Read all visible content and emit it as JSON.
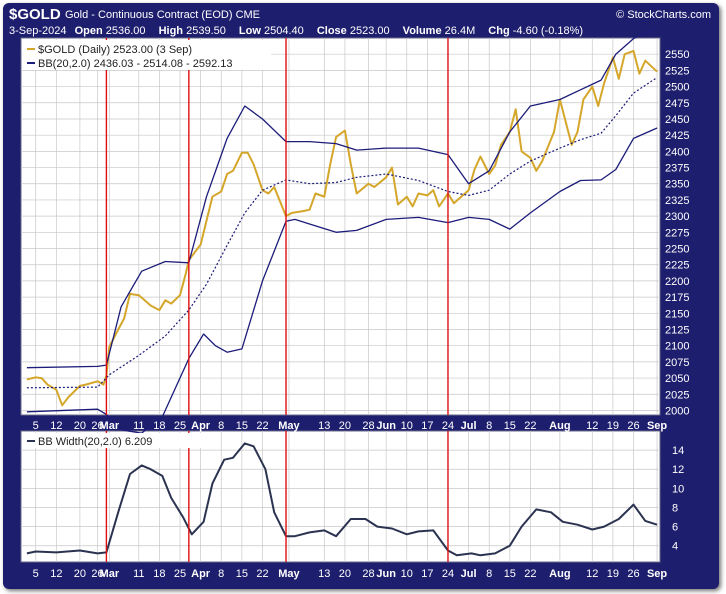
{
  "header": {
    "symbol": "$GOLD",
    "subtitle": "Gold - Continuous Contract (EOD) CME",
    "watermark": "© StockCharts.com",
    "date": "3-Sep-2024",
    "open_label": "Open",
    "open": "2536.00",
    "high_label": "High",
    "high": "2539.50",
    "low_label": "Low",
    "low": "2504.40",
    "close_label": "Close",
    "close": "2523.00",
    "volume_label": "Volume",
    "volume": "26.4M",
    "chg_label": "Chg",
    "chg": "-4.60 (-0.18%)"
  },
  "colors": {
    "price": "#d4a62a",
    "bands": "#1c1c7a",
    "lower_line": "#2b3350",
    "frame": "#1e1e6e",
    "marker": "#e01010",
    "grid": "#c8c8c8"
  },
  "chart_data": [
    {
      "type": "line",
      "legend": [
        "$GOLD (Daily) 2523.00 (3 Sep)",
        "BB(20,2.0) 2436.03 - 2514.08 - 2592.13"
      ],
      "y_ticks": [
        2000,
        2025,
        2050,
        2075,
        2100,
        2125,
        2150,
        2175,
        2200,
        2225,
        2250,
        2275,
        2300,
        2325,
        2350,
        2375,
        2400,
        2425,
        2450,
        2475,
        2500,
        2525,
        2550
      ],
      "ylim": [
        1993,
        2575
      ],
      "x_tick_labels": [
        "5",
        "12",
        "20",
        "26",
        "Mar",
        "11",
        "18",
        "25",
        "Apr",
        "8",
        "15",
        "22",
        "May",
        "13",
        "20",
        "28",
        "Jun",
        "10",
        "17",
        "24",
        "Jul",
        "8",
        "15",
        "22",
        "Aug",
        "12",
        "19",
        "26",
        "Sep"
      ],
      "x_tick_dates": [
        "2024-02-05",
        "2024-02-12",
        "2024-02-20",
        "2024-02-26",
        "2024-03-01",
        "2024-03-11",
        "2024-03-18",
        "2024-03-25",
        "2024-04-01",
        "2024-04-08",
        "2024-04-15",
        "2024-04-22",
        "2024-05-01",
        "2024-05-13",
        "2024-05-20",
        "2024-05-28",
        "2024-06-03",
        "2024-06-10",
        "2024-06-17",
        "2024-06-24",
        "2024-07-01",
        "2024-07-08",
        "2024-07-15",
        "2024-07-22",
        "2024-08-01",
        "2024-08-12",
        "2024-08-19",
        "2024-08-26",
        "2024-09-03"
      ],
      "event_lines": [
        "2024-02-29",
        "2024-03-28",
        "2024-04-30",
        "2024-06-24"
      ],
      "series": [
        {
          "name": "$GOLD (Daily)",
          "style": "solid",
          "x": [
            "2024-02-02",
            "2024-02-05",
            "2024-02-07",
            "2024-02-09",
            "2024-02-12",
            "2024-02-14",
            "2024-02-16",
            "2024-02-20",
            "2024-02-22",
            "2024-02-26",
            "2024-02-28",
            "2024-02-29",
            "2024-03-01",
            "2024-03-04",
            "2024-03-06",
            "2024-03-08",
            "2024-03-11",
            "2024-03-13",
            "2024-03-15",
            "2024-03-18",
            "2024-03-20",
            "2024-03-22",
            "2024-03-25",
            "2024-03-27",
            "2024-03-28",
            "2024-04-01",
            "2024-04-03",
            "2024-04-05",
            "2024-04-08",
            "2024-04-10",
            "2024-04-12",
            "2024-04-15",
            "2024-04-17",
            "2024-04-19",
            "2024-04-22",
            "2024-04-24",
            "2024-04-26",
            "2024-04-30",
            "2024-05-02",
            "2024-05-06",
            "2024-05-08",
            "2024-05-10",
            "2024-05-13",
            "2024-05-15",
            "2024-05-17",
            "2024-05-20",
            "2024-05-22",
            "2024-05-24",
            "2024-05-28",
            "2024-05-30",
            "2024-06-03",
            "2024-06-05",
            "2024-06-07",
            "2024-06-10",
            "2024-06-12",
            "2024-06-14",
            "2024-06-17",
            "2024-06-19",
            "2024-06-21",
            "2024-06-24",
            "2024-06-26",
            "2024-06-28",
            "2024-07-01",
            "2024-07-03",
            "2024-07-05",
            "2024-07-08",
            "2024-07-10",
            "2024-07-12",
            "2024-07-15",
            "2024-07-17",
            "2024-07-19",
            "2024-07-22",
            "2024-07-24",
            "2024-07-26",
            "2024-07-30",
            "2024-08-01",
            "2024-08-05",
            "2024-08-07",
            "2024-08-09",
            "2024-08-12",
            "2024-08-14",
            "2024-08-16",
            "2024-08-19",
            "2024-08-21",
            "2024-08-23",
            "2024-08-26",
            "2024-08-28",
            "2024-08-30",
            "2024-09-03"
          ],
          "values": [
            2048,
            2051,
            2050,
            2040,
            2032,
            2008,
            2020,
            2038,
            2040,
            2045,
            2040,
            2054,
            2098,
            2125,
            2142,
            2180,
            2178,
            2170,
            2162,
            2155,
            2170,
            2165,
            2178,
            2212,
            2232,
            2256,
            2293,
            2330,
            2338,
            2365,
            2370,
            2398,
            2398,
            2380,
            2340,
            2335,
            2345,
            2300,
            2305,
            2308,
            2310,
            2335,
            2330,
            2380,
            2422,
            2432,
            2380,
            2335,
            2350,
            2345,
            2360,
            2375,
            2318,
            2330,
            2315,
            2335,
            2332,
            2340,
            2315,
            2335,
            2320,
            2328,
            2340,
            2372,
            2392,
            2365,
            2378,
            2410,
            2430,
            2465,
            2400,
            2390,
            2370,
            2385,
            2430,
            2480,
            2410,
            2430,
            2480,
            2500,
            2470,
            2505,
            2545,
            2512,
            2550,
            2555,
            2520,
            2540,
            2523
          ]
        },
        {
          "name": "BB Upper",
          "style": "solid",
          "x": [
            "2024-02-02",
            "2024-02-26",
            "2024-02-29",
            "2024-03-05",
            "2024-03-12",
            "2024-03-20",
            "2024-03-28",
            "2024-04-03",
            "2024-04-10",
            "2024-04-16",
            "2024-04-22",
            "2024-04-30",
            "2024-05-08",
            "2024-05-17",
            "2024-05-24",
            "2024-06-03",
            "2024-06-14",
            "2024-06-24",
            "2024-07-01",
            "2024-07-08",
            "2024-07-15",
            "2024-07-22",
            "2024-08-01",
            "2024-08-08",
            "2024-08-15",
            "2024-08-20",
            "2024-08-26",
            "2024-09-03"
          ],
          "values": [
            2066,
            2068,
            2070,
            2160,
            2215,
            2230,
            2228,
            2330,
            2420,
            2470,
            2450,
            2415,
            2415,
            2412,
            2402,
            2405,
            2405,
            2395,
            2350,
            2370,
            2430,
            2470,
            2480,
            2495,
            2510,
            2550,
            2574,
            2592
          ]
        },
        {
          "name": "BB Middle",
          "style": "dotted",
          "x": [
            "2024-02-02",
            "2024-02-26",
            "2024-03-01",
            "2024-03-11",
            "2024-03-20",
            "2024-03-28",
            "2024-04-03",
            "2024-04-10",
            "2024-04-16",
            "2024-04-22",
            "2024-04-30",
            "2024-05-08",
            "2024-05-17",
            "2024-05-24",
            "2024-06-03",
            "2024-06-14",
            "2024-06-24",
            "2024-07-01",
            "2024-07-08",
            "2024-07-15",
            "2024-07-22",
            "2024-08-01",
            "2024-08-08",
            "2024-08-15",
            "2024-08-20",
            "2024-08-26",
            "2024-09-03"
          ],
          "values": [
            2035,
            2036,
            2055,
            2085,
            2115,
            2155,
            2195,
            2255,
            2305,
            2340,
            2356,
            2350,
            2352,
            2360,
            2365,
            2355,
            2338,
            2332,
            2340,
            2365,
            2385,
            2405,
            2418,
            2428,
            2455,
            2490,
            2514
          ]
        },
        {
          "name": "BB Lower",
          "style": "solid",
          "x": [
            "2024-02-02",
            "2024-02-26",
            "2024-02-29",
            "2024-03-05",
            "2024-03-12",
            "2024-03-19",
            "2024-03-28",
            "2024-04-02",
            "2024-04-06",
            "2024-04-10",
            "2024-04-15",
            "2024-04-22",
            "2024-04-30",
            "2024-05-03",
            "2024-05-10",
            "2024-05-17",
            "2024-05-24",
            "2024-06-03",
            "2024-06-14",
            "2024-06-24",
            "2024-07-01",
            "2024-07-08",
            "2024-07-15",
            "2024-07-22",
            "2024-08-01",
            "2024-08-08",
            "2024-08-15",
            "2024-08-20",
            "2024-08-26",
            "2024-09-03"
          ],
          "values": [
            1998,
            2002,
            1994,
            1970,
            1965,
            1990,
            2080,
            2118,
            2100,
            2090,
            2095,
            2200,
            2292,
            2295,
            2285,
            2275,
            2278,
            2295,
            2298,
            2290,
            2298,
            2295,
            2280,
            2305,
            2338,
            2355,
            2356,
            2372,
            2420,
            2436
          ]
        }
      ]
    },
    {
      "type": "line",
      "legend": "BB Width(20,2.0) 6.209",
      "y_ticks": [
        4,
        6,
        8,
        10,
        12,
        14
      ],
      "ylim": [
        2.3,
        16
      ],
      "series": [
        {
          "name": "BB Width(20,2.0)",
          "style": "solid",
          "x": [
            "2024-02-02",
            "2024-02-05",
            "2024-02-12",
            "2024-02-20",
            "2024-02-26",
            "2024-02-29",
            "2024-03-04",
            "2024-03-08",
            "2024-03-12",
            "2024-03-15",
            "2024-03-19",
            "2024-03-22",
            "2024-03-26",
            "2024-03-29",
            "2024-04-02",
            "2024-04-05",
            "2024-04-09",
            "2024-04-12",
            "2024-04-16",
            "2024-04-19",
            "2024-04-23",
            "2024-04-26",
            "2024-04-30",
            "2024-05-03",
            "2024-05-08",
            "2024-05-13",
            "2024-05-17",
            "2024-05-22",
            "2024-05-27",
            "2024-05-31",
            "2024-06-05",
            "2024-06-10",
            "2024-06-14",
            "2024-06-19",
            "2024-06-24",
            "2024-06-27",
            "2024-07-02",
            "2024-07-05",
            "2024-07-10",
            "2024-07-15",
            "2024-07-19",
            "2024-07-24",
            "2024-07-29",
            "2024-08-02",
            "2024-08-07",
            "2024-08-12",
            "2024-08-16",
            "2024-08-21",
            "2024-08-26",
            "2024-08-30",
            "2024-09-03"
          ],
          "values": [
            3.2,
            3.4,
            3.3,
            3.5,
            3.2,
            3.3,
            7.5,
            11.5,
            12.4,
            12.0,
            11.3,
            9.0,
            7.0,
            5.2,
            6.5,
            10.5,
            13.0,
            13.2,
            14.7,
            14.4,
            12.0,
            7.5,
            5.0,
            5.0,
            5.4,
            5.6,
            5.0,
            6.8,
            6.8,
            6.0,
            5.8,
            5.2,
            5.5,
            5.6,
            3.5,
            3.0,
            3.2,
            3.0,
            3.2,
            4.0,
            6.0,
            7.8,
            7.5,
            6.5,
            6.2,
            5.7,
            6.0,
            6.8,
            8.3,
            6.6,
            6.2
          ]
        }
      ]
    }
  ]
}
